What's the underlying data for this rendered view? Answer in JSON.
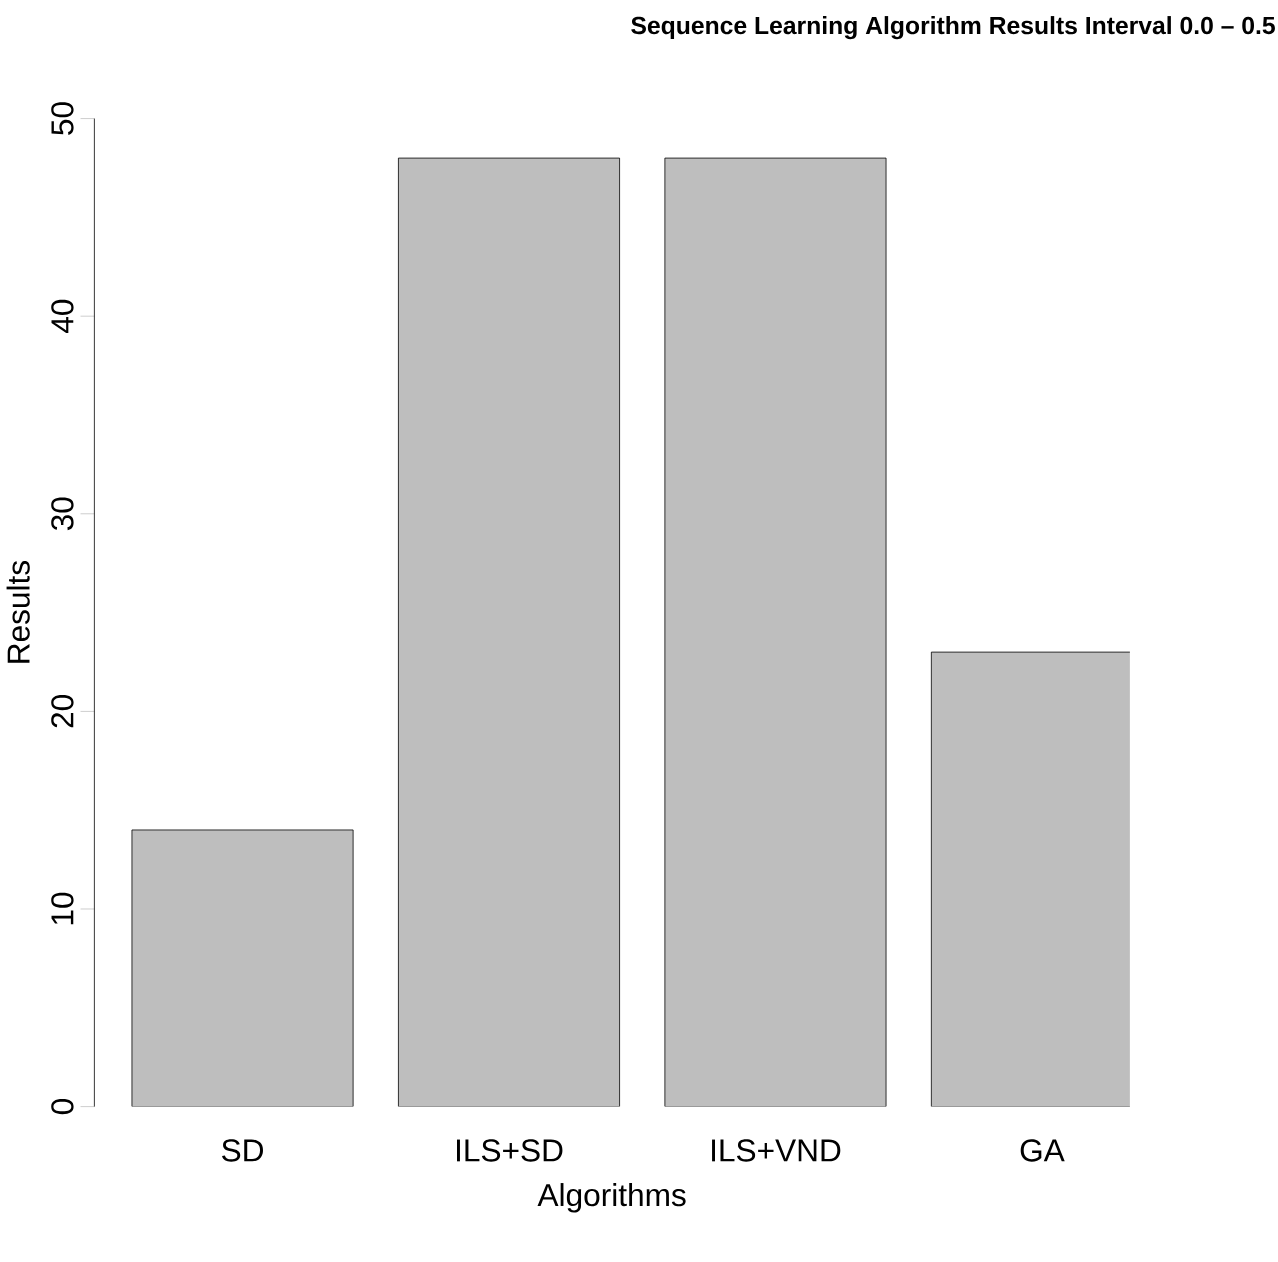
{
  "chart_data": {
    "type": "bar",
    "title": "Sequence Learning Algorithm Results Interval 0.0 – 0.5",
    "xlabel": "Algorithms",
    "ylabel": "Results",
    "categories": [
      "SD",
      "ILS+SD",
      "ILS+VND",
      "GA"
    ],
    "values": [
      14,
      48,
      48,
      23
    ],
    "color": "#bebebe",
    "ylim": [
      0,
      50
    ],
    "yticks": [
      0,
      10,
      20,
      30,
      40,
      50
    ]
  }
}
